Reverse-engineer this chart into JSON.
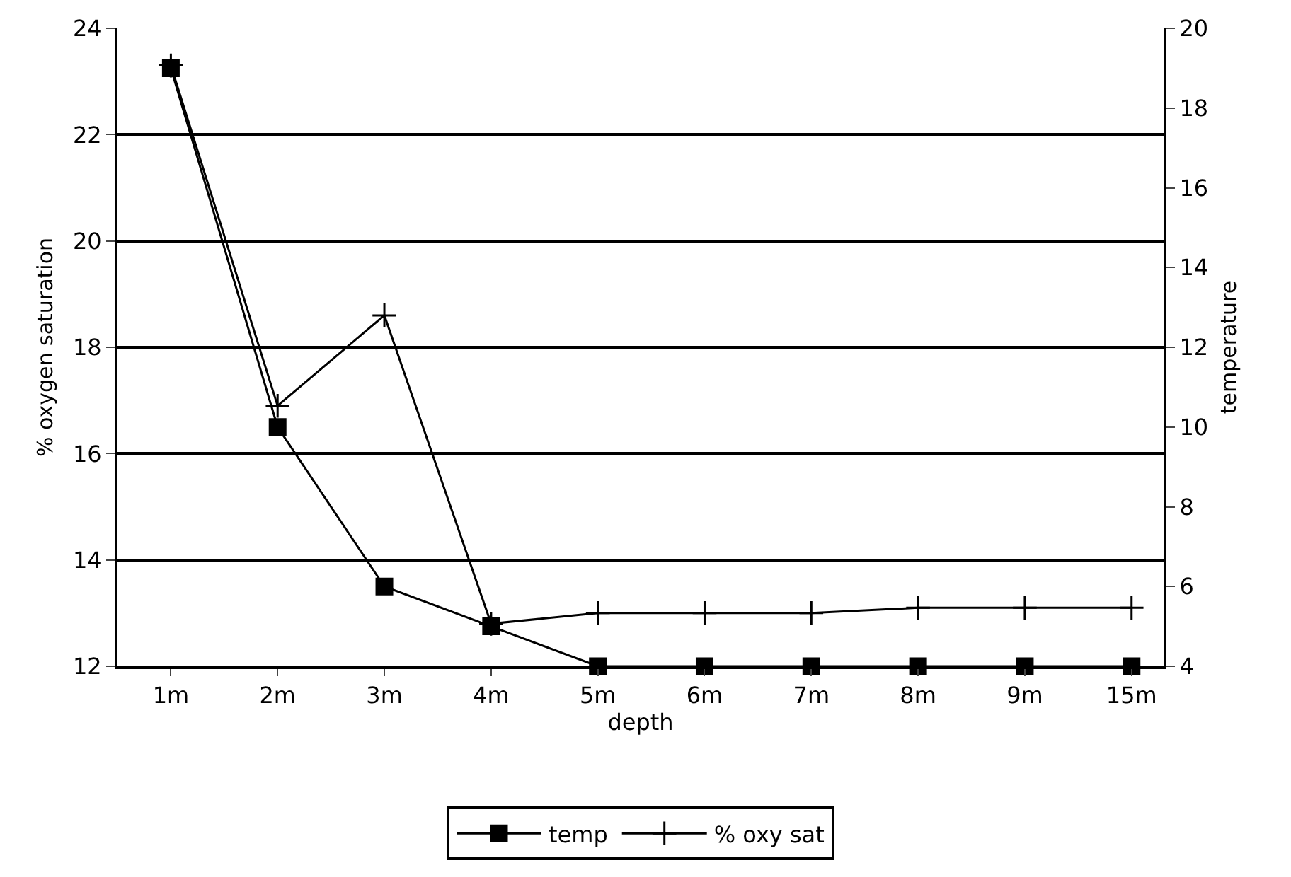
{
  "chart_data": {
    "type": "line",
    "xlabel": "depth",
    "ylabel": "% oxygen saturation",
    "y2label": "temperature",
    "categories": [
      "1m",
      "2m",
      "3m",
      "4m",
      "5m",
      "6m",
      "7m",
      "8m",
      "9m",
      "15m"
    ],
    "series": [
      {
        "name": "temp",
        "color": "#000000",
        "marker": "square",
        "axis": "y2",
        "values": [
          19,
          10,
          6,
          5,
          4,
          4,
          4,
          4,
          4,
          4
        ]
      },
      {
        "name": "% oxy sat",
        "color": "#000000",
        "marker": "cross",
        "values": [
          23.3,
          16.9,
          18.6,
          12.8,
          13.0,
          13.0,
          13.0,
          13.1,
          13.1,
          13.1
        ]
      }
    ],
    "ylim": [
      12,
      24
    ],
    "yticks": [
      12,
      14,
      16,
      18,
      20,
      22,
      24
    ],
    "y2lim": [
      4,
      20
    ],
    "y2ticks": [
      4,
      6,
      8,
      10,
      12,
      14,
      16,
      18,
      20
    ],
    "grid": "y",
    "legend": "bottom",
    "line_style": "solid"
  }
}
